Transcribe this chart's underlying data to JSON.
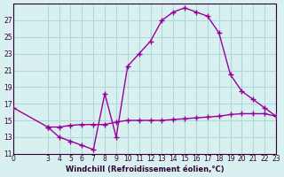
{
  "xlabel": "Windchill (Refroidissement éolien,°C)",
  "bg_color": "#d8f0f0",
  "grid_color": "#b0d8d8",
  "line_color": "#990099",
  "x_upper": [
    0,
    3,
    4,
    5,
    6,
    7,
    8,
    9,
    10,
    11,
    12,
    13,
    14,
    15,
    16,
    17,
    18,
    19,
    20,
    21,
    22,
    23
  ],
  "y_upper": [
    16.5,
    14.2,
    13.0,
    12.5,
    12.0,
    11.5,
    18.2,
    13.0,
    21.5,
    23.0,
    24.5,
    27.0,
    28.0,
    28.5,
    28.0,
    27.5,
    25.5,
    20.5,
    18.5,
    17.5,
    16.5,
    15.5
  ],
  "x_lower": [
    3,
    4,
    5,
    6,
    7,
    8,
    9,
    10,
    11,
    12,
    13,
    14,
    15,
    16,
    17,
    18,
    19,
    20,
    21,
    22,
    23
  ],
  "y_lower": [
    14.2,
    14.2,
    14.4,
    14.5,
    14.5,
    14.5,
    14.8,
    15.0,
    15.0,
    15.0,
    15.0,
    15.1,
    15.2,
    15.3,
    15.4,
    15.5,
    15.7,
    15.8,
    15.8,
    15.8,
    15.5
  ],
  "ylim": [
    11,
    29
  ],
  "xlim": [
    0,
    23
  ],
  "yticks": [
    11,
    13,
    15,
    17,
    19,
    21,
    23,
    25,
    27
  ],
  "xticks": [
    0,
    3,
    4,
    5,
    6,
    7,
    8,
    9,
    10,
    11,
    12,
    13,
    14,
    15,
    16,
    17,
    18,
    19,
    20,
    21,
    22,
    23
  ],
  "marker": "+",
  "marker_size": 4,
  "line_width": 1.0
}
